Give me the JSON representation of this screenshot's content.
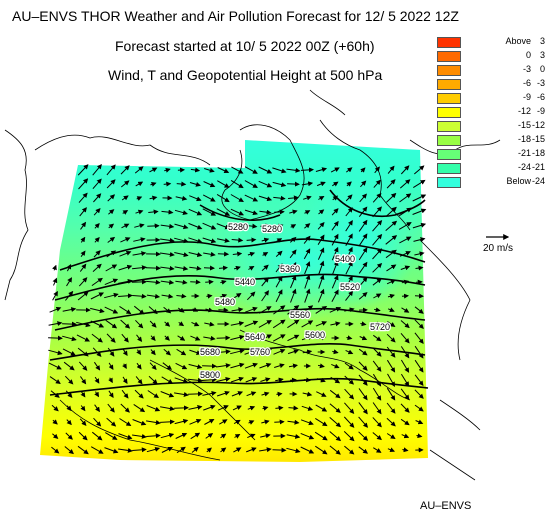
{
  "header": {
    "title": "AU–ENVS THOR Weather and Air Pollution Forecast for 12/ 5 2022  12Z",
    "subtitle_forecast": "Forecast started at 10/ 5 2022  00Z (+60h)",
    "subtitle_variable": "Wind, T and Geopotential Height at 500 hPa"
  },
  "legend": {
    "items": [
      {
        "lo": "Above",
        "hi": "3",
        "color": "#ff3300"
      },
      {
        "lo": "0",
        "hi": "3",
        "color": "#ff6a00"
      },
      {
        "lo": "-3",
        "hi": "0",
        "color": "#ff8c00"
      },
      {
        "lo": "-6",
        "hi": "-3",
        "color": "#ffaa00"
      },
      {
        "lo": "-9",
        "hi": "-6",
        "color": "#ffcc00"
      },
      {
        "lo": "-12",
        "hi": "-9",
        "color": "#ffff00"
      },
      {
        "lo": "-15",
        "hi": "-12",
        "color": "#ccff33"
      },
      {
        "lo": "-18",
        "hi": "-15",
        "color": "#99ff44"
      },
      {
        "lo": "-21",
        "hi": "-18",
        "color": "#66ff77"
      },
      {
        "lo": "-24",
        "hi": "-21",
        "color": "#33ffaa"
      },
      {
        "lo": "Below",
        "hi": "-24",
        "color": "#33ffdd"
      }
    ]
  },
  "wind_scale": {
    "label": "20 m/s"
  },
  "contour_labels": [
    "5280",
    "5280",
    "5360",
    "5400",
    "5440",
    "5480",
    "5520",
    "5560",
    "5600",
    "5640",
    "5680",
    "5720",
    "5760",
    "5800"
  ],
  "footer": {
    "credit": "AU–ENVS"
  }
}
